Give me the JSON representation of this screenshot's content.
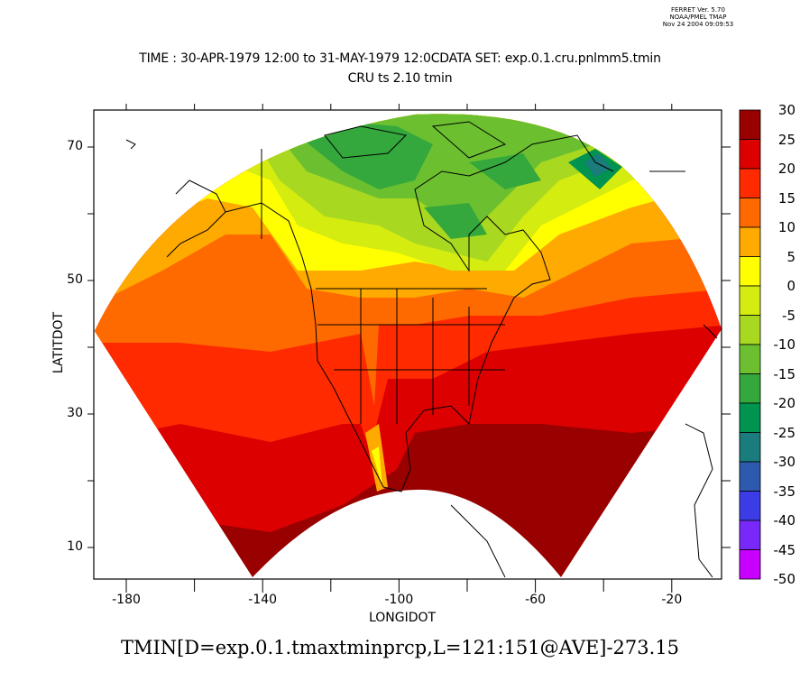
{
  "header": {
    "line1": "FERRET Ver. 5.70",
    "line2": "NOAA/PMEL TMAP",
    "line3": "Nov 24 2004 09:09:53"
  },
  "title": {
    "line1": "TIME : 30-APR-1979 12:00 to 31-MAY-1979 12:0CDATA SET: exp.0.1.cru.pnlmm5.tmin",
    "line2": "CRU ts 2.10 tmin"
  },
  "axes": {
    "xlabel": "LONGIDOT",
    "ylabel": "LATITDOT",
    "xticks": [
      {
        "value": -180,
        "label": "-180"
      },
      {
        "value": -160,
        "label": ""
      },
      {
        "value": -140,
        "label": "-140"
      },
      {
        "value": -120,
        "label": ""
      },
      {
        "value": -100,
        "label": "-100"
      },
      {
        "value": -80,
        "label": ""
      },
      {
        "value": -60,
        "label": "-60"
      },
      {
        "value": -40,
        "label": ""
      },
      {
        "value": -20,
        "label": "-20"
      }
    ],
    "yticks": [
      {
        "value": 70,
        "label": "70"
      },
      {
        "value": 60,
        "label": ""
      },
      {
        "value": 50,
        "label": "50"
      },
      {
        "value": 40,
        "label": ""
      },
      {
        "value": 30,
        "label": "30"
      },
      {
        "value": 20,
        "label": ""
      },
      {
        "value": 10,
        "label": "10"
      }
    ]
  },
  "colorbar": {
    "labels": [
      "30",
      "25",
      "20",
      "15",
      "10",
      "5",
      "0",
      "-5",
      "-10",
      "-15",
      "-20",
      "-25",
      "-30",
      "-35",
      "-40",
      "-45",
      "-50"
    ],
    "colors": [
      "#990000",
      "#dd0000",
      "#ff2a00",
      "#ff6a00",
      "#ffaa00",
      "#ffff00",
      "#d4ec10",
      "#a8d820",
      "#6cc030",
      "#34a83c",
      "#009450",
      "#1a7c7c",
      "#2d5aac",
      "#3c3ce6",
      "#7828f8",
      "#c800ff"
    ]
  },
  "footer": "TMIN[D=exp.0.1.tmaxtminprcp,L=121:151@AVE]-273.15"
}
